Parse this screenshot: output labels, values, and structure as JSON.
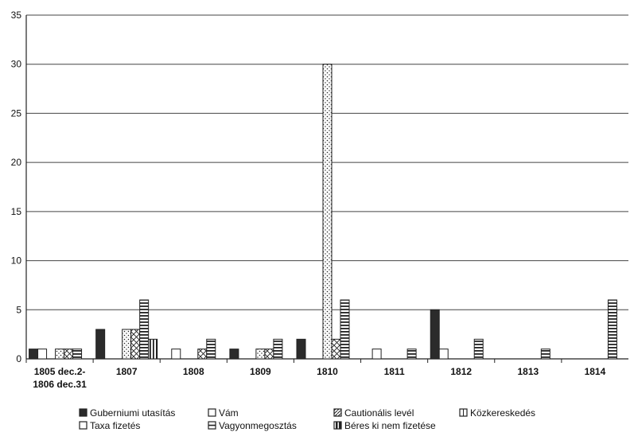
{
  "chart_data": {
    "type": "bar",
    "title": "",
    "xlabel": "",
    "ylabel": "",
    "ylim": [
      0,
      35
    ],
    "yticks": [
      0,
      5,
      10,
      15,
      20,
      25,
      30,
      35
    ],
    "grid": true,
    "legend_position": "bottom",
    "categories": [
      [
        "1805 dec.2-",
        "1806 dec.31"
      ],
      [
        "1807"
      ],
      [
        "1808"
      ],
      [
        "1809"
      ],
      [
        "1810"
      ],
      [
        "1811"
      ],
      [
        "1812"
      ],
      [
        "1813"
      ],
      [
        "1814"
      ]
    ],
    "series": [
      {
        "name": "Guberniumi utasítás",
        "pattern": "solid",
        "values": [
          1,
          3,
          0,
          1,
          2,
          0,
          5,
          0,
          0
        ]
      },
      {
        "name": "Taxa fizetés",
        "pattern": "blank",
        "values": [
          1,
          0,
          1,
          0,
          0,
          1,
          1,
          0,
          0
        ]
      },
      {
        "name": "Vám",
        "pattern": "blank",
        "values": [
          0,
          0,
          0,
          0,
          0,
          0,
          0,
          0,
          0
        ]
      },
      {
        "name": "Vagyonmegosztás",
        "pattern": "dots",
        "values": [
          1,
          3,
          0,
          1,
          30,
          0,
          0,
          0,
          0
        ]
      },
      {
        "name": "Cautionális levél",
        "pattern": "cross",
        "values": [
          1,
          3,
          1,
          1,
          2,
          0,
          0,
          0,
          0
        ]
      },
      {
        "name": "Béres ki nem fizetése",
        "pattern": "hstripes",
        "values": [
          1,
          6,
          2,
          2,
          6,
          1,
          2,
          1,
          6
        ]
      },
      {
        "name": "Közkereskedés",
        "pattern": "vstripes",
        "values": [
          0,
          2,
          0,
          0,
          0,
          0,
          0,
          0,
          0
        ]
      }
    ],
    "legend_order": [
      0,
      2,
      4,
      6,
      1,
      3,
      5
    ],
    "legend_swatch_style": [
      "solid",
      "blank",
      "diag",
      "split",
      "blank",
      "hline",
      "vsplit"
    ],
    "legend_columns": 4
  }
}
